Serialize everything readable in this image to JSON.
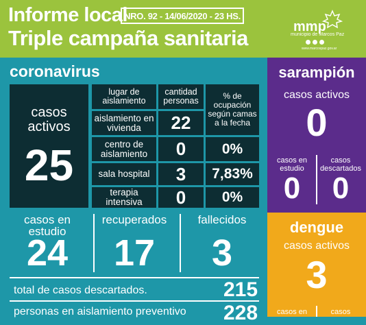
{
  "header": {
    "title_line1": "Informe local",
    "title_line2": "Triple campaña sanitaria",
    "report_number": "NRO. 92 - 14/06/2020 - 23 HS.",
    "logo_text": "mmp",
    "logo_subtitle": "municipio de Marcos Paz",
    "logo_url": "www.marcospaz.gov.ar"
  },
  "coronavirus": {
    "title": "coronavirus",
    "active_label": "casos activos",
    "active_value": "25",
    "table": {
      "headers": [
        "lugar de aislamiento",
        "cantidad personas",
        "% de ocupación según camas a la fecha"
      ],
      "rows": [
        {
          "place": "aislamiento en vivienda",
          "count": "22",
          "pct": ""
        },
        {
          "place": "centro de aislamiento",
          "count": "0",
          "pct": "0%"
        },
        {
          "place": "sala hospital",
          "count": "3",
          "pct": "7,83%"
        },
        {
          "place": "terapia intensiva",
          "count": "0",
          "pct": "0%"
        }
      ]
    },
    "in_study_label": "casos en estudio",
    "in_study_value": "24",
    "recovered_label": "recuperados",
    "recovered_value": "17",
    "deceased_label": "fallecidos",
    "deceased_value": "3",
    "discarded_label": "total de casos descartados.",
    "discarded_value": "215",
    "preventive_label": "personas en aislamiento preventivo",
    "preventive_value": "228"
  },
  "sarampion": {
    "title": "sarampión",
    "active_label": "casos activos",
    "active_value": "0",
    "study_label": "casos en estudio",
    "study_value": "0",
    "discarded_label": "casos descartados",
    "discarded_value": "0"
  },
  "dengue": {
    "title": "dengue",
    "active_label": "casos activos",
    "active_value": "3",
    "study_label_partial": "casos en",
    "discarded_label_partial": "casos"
  },
  "colors": {
    "header_green": "#9bc33d",
    "teal": "#1e97a8",
    "dark": "#0d2d33",
    "purple": "#5b2c8b",
    "orange": "#f1a91b"
  }
}
